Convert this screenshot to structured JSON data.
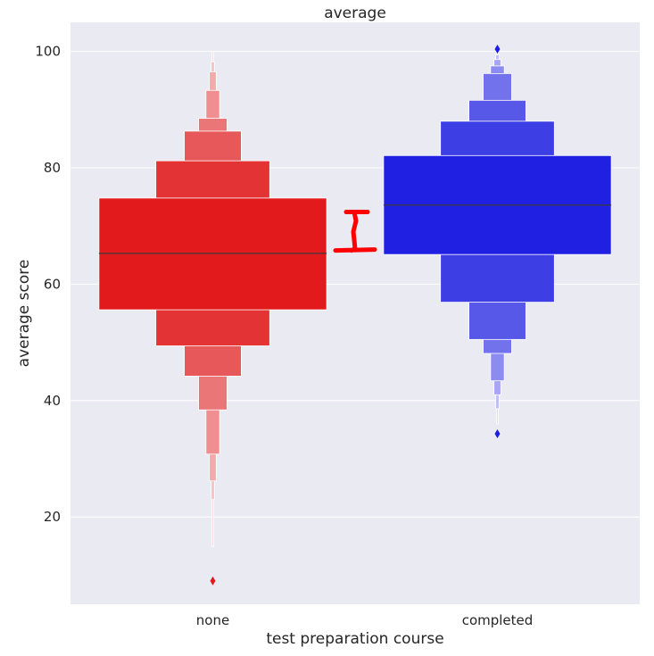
{
  "chart_data": {
    "type": "boxen",
    "title": "average",
    "xlabel": "test preparation course",
    "ylabel": "average score",
    "categories": [
      "none",
      "completed"
    ],
    "ylim": [
      5,
      105
    ],
    "yticks": [
      20,
      40,
      60,
      80,
      100
    ],
    "grid": true,
    "series": [
      {
        "name": "none",
        "color": "#e31a1c",
        "median": 65.3,
        "levels": [
          {
            "low": 55.6,
            "high": 74.8,
            "width": 1.0,
            "color": "#e31a1c"
          },
          {
            "low": 49.4,
            "high": 81.2,
            "width": 0.5,
            "color": "#e43335"
          },
          {
            "low": 44.2,
            "high": 86.3,
            "width": 0.25,
            "color": "#e6585a"
          },
          {
            "low": 38.4,
            "high": 88.5,
            "width": 0.125,
            "color": "#eb7678"
          },
          {
            "low": 30.8,
            "high": 93.3,
            "width": 0.06,
            "color": "#f08f91"
          },
          {
            "low": 26.2,
            "high": 96.5,
            "width": 0.03,
            "color": "#f4a9aa"
          },
          {
            "low": 23.0,
            "high": 98.2,
            "width": 0.015,
            "color": "#f8c4c5"
          },
          {
            "low": 14.9,
            "high": 100.0,
            "width": 0.007,
            "color": "#fbdfdf"
          }
        ],
        "outliers": [
          9.0
        ]
      },
      {
        "name": "completed",
        "color": "#1c1ce3",
        "median": 73.6,
        "levels": [
          {
            "low": 65.1,
            "high": 82.1,
            "width": 1.0,
            "color": "#2020e3"
          },
          {
            "low": 56.9,
            "high": 88.0,
            "width": 0.5,
            "color": "#3e3ee5"
          },
          {
            "low": 50.5,
            "high": 91.6,
            "width": 0.25,
            "color": "#5858e8"
          },
          {
            "low": 48.1,
            "high": 96.2,
            "width": 0.125,
            "color": "#7272ec"
          },
          {
            "low": 43.4,
            "high": 97.5,
            "width": 0.06,
            "color": "#8c8cf0"
          },
          {
            "low": 41.0,
            "high": 98.6,
            "width": 0.03,
            "color": "#a6a6f4"
          },
          {
            "low": 38.6,
            "high": 99.4,
            "width": 0.015,
            "color": "#c0c0f7"
          },
          {
            "low": 36.0,
            "high": 100.0,
            "width": 0.007,
            "color": "#dadafa"
          }
        ],
        "outliers": [
          34.3,
          100.4
        ]
      }
    ],
    "annotation": {
      "type": "bracket",
      "color": "#ff0000",
      "low": 65.8,
      "high": 72.4,
      "description": "red bracket between medians"
    },
    "colors": {
      "background": "#eaeaf2",
      "grid": "#ffffff",
      "median_line": "#3a3a3a"
    }
  }
}
